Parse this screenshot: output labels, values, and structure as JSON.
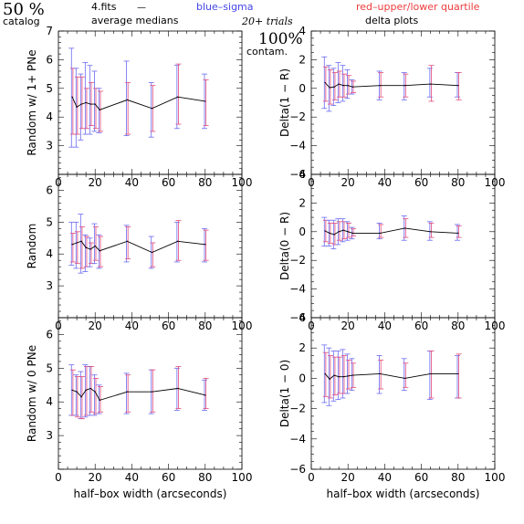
{
  "header": {
    "percent": "50 %",
    "catalog": "catalog",
    "file": "4.fits",
    "dash": "—",
    "average_medians": "average medians",
    "blue_sigma": "blue–sigma",
    "red_quartile": "red–upper/lower quartile",
    "trials": "20+ trials",
    "contam_pct": "100%",
    "contam": "contam.",
    "delta_plots": "delta plots"
  },
  "colors": {
    "line": "#000000",
    "sigma": "#6a6af2",
    "quartile": "#e24a7a",
    "blue_text": "#4646e6",
    "red_text": "#ee3b3b"
  },
  "chart_data": [
    {
      "type": "line",
      "panel": "left-top",
      "ylabel": "Random w/ 1+ PNe",
      "xlabel": "",
      "xlim": [
        0,
        100
      ],
      "ylim": [
        2,
        7
      ],
      "xticks": [
        "0",
        "20",
        "40",
        "60",
        "80",
        "100"
      ],
      "yticks": [
        "3",
        "4",
        "5",
        "6",
        "7"
      ],
      "x": [
        7.5,
        10,
        12.5,
        15,
        17.5,
        20,
        22.5,
        37.5,
        51,
        65,
        80
      ],
      "values": [
        4.7,
        4.35,
        4.45,
        4.5,
        4.45,
        4.45,
        4.25,
        4.6,
        4.3,
        4.7,
        4.55
      ],
      "sigma": [
        [
          2.95,
          6.4
        ],
        [
          2.95,
          5.7
        ],
        [
          3.2,
          5.5
        ],
        [
          3.4,
          5.9
        ],
        [
          3.4,
          5.8
        ],
        [
          3.5,
          5.6
        ],
        [
          3.45,
          5.0
        ],
        [
          3.35,
          5.95
        ],
        [
          3.3,
          5.2
        ],
        [
          3.6,
          5.8
        ],
        [
          3.6,
          5.5
        ]
      ],
      "quartile": [
        [
          3.4,
          5.7
        ],
        [
          3.4,
          5.4
        ],
        [
          3.6,
          5.4
        ],
        [
          3.6,
          5.0
        ],
        [
          3.7,
          5.2
        ],
        [
          3.6,
          5.0
        ],
        [
          3.5,
          4.9
        ],
        [
          3.4,
          5.2
        ],
        [
          3.5,
          5.1
        ],
        [
          3.75,
          5.85
        ],
        [
          3.7,
          5.3
        ]
      ]
    },
    {
      "type": "line",
      "panel": "right-top",
      "ylabel": "Delta(1 − R)",
      "xlabel": "",
      "xlim": [
        0,
        100
      ],
      "ylim": [
        -6,
        4
      ],
      "xticks": [
        "0",
        "20",
        "40",
        "60",
        "80",
        "100"
      ],
      "yticks": [
        "−6",
        "−4",
        "−2",
        "0",
        "2",
        "4"
      ],
      "x": [
        7.5,
        10,
        12.5,
        15,
        17.5,
        20,
        22.5,
        37.5,
        51,
        65,
        80
      ],
      "values": [
        0.4,
        0.05,
        0.1,
        0.3,
        0.2,
        0.2,
        0.1,
        0.2,
        0.2,
        0.3,
        0.2
      ],
      "sigma": [
        [
          -1.4,
          2.2
        ],
        [
          -1.6,
          1.6
        ],
        [
          -1.2,
          1.4
        ],
        [
          -1.0,
          1.8
        ],
        [
          -0.9,
          1.6
        ],
        [
          -0.7,
          1.3
        ],
        [
          -0.4,
          0.6
        ],
        [
          -0.8,
          1.2
        ],
        [
          -0.8,
          1.1
        ],
        [
          -0.6,
          1.4
        ],
        [
          -0.6,
          1.1
        ]
      ],
      "quartile": [
        [
          -0.9,
          1.5
        ],
        [
          -1.1,
          1.3
        ],
        [
          -0.8,
          1.1
        ],
        [
          -0.6,
          1.2
        ],
        [
          -0.6,
          1.0
        ],
        [
          -0.4,
          0.9
        ],
        [
          -0.3,
          0.5
        ],
        [
          -0.6,
          1.1
        ],
        [
          -0.6,
          1.0
        ],
        [
          -0.9,
          1.6
        ],
        [
          -0.8,
          1.1
        ]
      ]
    },
    {
      "type": "line",
      "panel": "left-middle",
      "ylabel": "Random",
      "xlabel": "",
      "xlim": [
        0,
        100
      ],
      "ylim": [
        2,
        6.5
      ],
      "xticks": [
        "0",
        "20",
        "40",
        "60",
        "80",
        "100"
      ],
      "yticks": [
        "3",
        "4",
        "5",
        "6"
      ],
      "x": [
        7.5,
        10,
        12.5,
        15,
        17.5,
        20,
        22.5,
        37.5,
        51,
        65,
        80
      ],
      "values": [
        4.3,
        4.35,
        4.4,
        4.2,
        4.15,
        4.25,
        4.1,
        4.4,
        4.05,
        4.4,
        4.3
      ],
      "sigma": [
        [
          3.65,
          5.0
        ],
        [
          3.55,
          5.0
        ],
        [
          3.4,
          5.25
        ],
        [
          3.45,
          4.6
        ],
        [
          3.6,
          4.5
        ],
        [
          3.7,
          4.95
        ],
        [
          3.55,
          4.6
        ],
        [
          3.75,
          4.9
        ],
        [
          3.55,
          4.55
        ],
        [
          3.75,
          5.0
        ],
        [
          3.75,
          4.8
        ]
      ],
      "quartile": [
        [
          3.75,
          4.65
        ],
        [
          3.7,
          4.7
        ],
        [
          3.55,
          4.85
        ],
        [
          3.6,
          4.55
        ],
        [
          3.7,
          4.35
        ],
        [
          3.8,
          4.85
        ],
        [
          3.6,
          4.55
        ],
        [
          3.85,
          4.85
        ],
        [
          3.6,
          4.35
        ],
        [
          3.8,
          5.05
        ],
        [
          3.8,
          4.75
        ]
      ]
    },
    {
      "type": "line",
      "panel": "right-middle",
      "ylabel": "Delta(0 − R)",
      "xlabel": "",
      "xlim": [
        0,
        100
      ],
      "ylim": [
        -6,
        4
      ],
      "xticks": [
        "0",
        "20",
        "40",
        "60",
        "80",
        "100"
      ],
      "yticks": [
        "−6",
        "−4",
        "−2",
        "0",
        "2",
        "4"
      ],
      "x": [
        7.5,
        10,
        12.5,
        15,
        17.5,
        20,
        22.5,
        37.5,
        51,
        65,
        80
      ],
      "values": [
        0.05,
        -0.1,
        -0.2,
        0.0,
        0.1,
        0.0,
        -0.1,
        -0.1,
        0.25,
        0.0,
        -0.1
      ],
      "sigma": [
        [
          -1.0,
          1.0
        ],
        [
          -1.0,
          0.8
        ],
        [
          -1.2,
          0.8
        ],
        [
          -0.9,
          0.9
        ],
        [
          -0.7,
          0.9
        ],
        [
          -0.6,
          0.7
        ],
        [
          -0.5,
          0.3
        ],
        [
          -0.5,
          0.6
        ],
        [
          -0.6,
          1.1
        ],
        [
          -0.6,
          0.7
        ],
        [
          -0.6,
          0.5
        ]
      ],
      "quartile": [
        [
          -0.7,
          0.8
        ],
        [
          -0.8,
          0.6
        ],
        [
          -0.9,
          0.6
        ],
        [
          -0.6,
          0.7
        ],
        [
          -0.5,
          0.7
        ],
        [
          -0.4,
          0.6
        ],
        [
          -0.3,
          0.2
        ],
        [
          -0.4,
          0.5
        ],
        [
          -0.4,
          0.9
        ],
        [
          -0.4,
          0.6
        ],
        [
          -0.4,
          0.4
        ]
      ]
    },
    {
      "type": "line",
      "panel": "left-bottom",
      "ylabel": "Random w/ 0 PNe",
      "xlabel": "half–box width (arcseconds)",
      "xlim": [
        0,
        100
      ],
      "ylim": [
        2,
        6.5
      ],
      "xticks": [
        "0",
        "20",
        "40",
        "60",
        "80",
        "100"
      ],
      "yticks": [
        "3",
        "4",
        "5",
        "6"
      ],
      "x": [
        7.5,
        10,
        12.5,
        15,
        17.5,
        20,
        22.5,
        37.5,
        51,
        65,
        80
      ],
      "values": [
        4.35,
        4.3,
        4.15,
        4.35,
        4.4,
        4.3,
        4.05,
        4.3,
        4.3,
        4.4,
        4.2
      ],
      "sigma": [
        [
          3.6,
          5.1
        ],
        [
          3.6,
          4.8
        ],
        [
          3.5,
          4.9
        ],
        [
          3.55,
          5.1
        ],
        [
          3.6,
          5.05
        ],
        [
          3.6,
          4.8
        ],
        [
          3.65,
          4.5
        ],
        [
          3.65,
          4.85
        ],
        [
          3.65,
          4.95
        ],
        [
          3.75,
          5.0
        ],
        [
          3.75,
          4.65
        ]
      ],
      "quartile": [
        [
          3.6,
          4.95
        ],
        [
          3.55,
          4.75
        ],
        [
          3.5,
          4.75
        ],
        [
          3.6,
          5.05
        ],
        [
          3.7,
          5.05
        ],
        [
          3.65,
          4.7
        ],
        [
          3.7,
          4.45
        ],
        [
          3.7,
          4.8
        ],
        [
          3.7,
          4.95
        ],
        [
          3.8,
          5.05
        ],
        [
          3.8,
          4.7
        ]
      ]
    },
    {
      "type": "line",
      "panel": "right-bottom",
      "ylabel": "Delta(1 − 0)",
      "xlabel": "half–box width (arcseconds)",
      "xlim": [
        0,
        100
      ],
      "ylim": [
        -6,
        4
      ],
      "xticks": [
        "0",
        "20",
        "40",
        "60",
        "80",
        "100"
      ],
      "yticks": [
        "−6",
        "−4",
        "−2",
        "0",
        "2",
        "4"
      ],
      "x": [
        7.5,
        10,
        12.5,
        15,
        17.5,
        20,
        22.5,
        37.5,
        51,
        65,
        80
      ],
      "values": [
        0.3,
        -0.05,
        0.2,
        0.1,
        0.1,
        0.15,
        0.2,
        0.3,
        0.0,
        0.3,
        0.3
      ],
      "sigma": [
        [
          -1.6,
          2.2
        ],
        [
          -1.8,
          2.0
        ],
        [
          -1.5,
          1.8
        ],
        [
          -1.4,
          1.8
        ],
        [
          -1.3,
          1.9
        ],
        [
          -1.0,
          1.6
        ],
        [
          -0.8,
          1.3
        ],
        [
          -1.0,
          1.5
        ],
        [
          -0.8,
          1.3
        ],
        [
          -1.4,
          1.8
        ],
        [
          -1.3,
          1.5
        ]
      ],
      "quartile": [
        [
          -1.2,
          1.7
        ],
        [
          -1.3,
          1.5
        ],
        [
          -1.1,
          1.4
        ],
        [
          -1.0,
          1.4
        ],
        [
          -1.0,
          1.5
        ],
        [
          -0.7,
          1.2
        ],
        [
          -0.6,
          1.0
        ],
        [
          -0.7,
          1.2
        ],
        [
          -0.6,
          1.0
        ],
        [
          -1.3,
          1.8
        ],
        [
          -1.3,
          1.6
        ]
      ]
    }
  ]
}
